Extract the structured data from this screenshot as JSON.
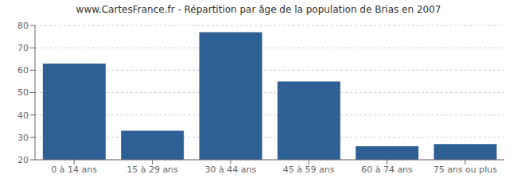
{
  "chart_data": {
    "type": "bar",
    "title": "www.CartesFrance.fr - Répartition par âge de la population de Brias en 2007",
    "categories": [
      "0 à 14 ans",
      "15 à 29 ans",
      "30 à 44 ans",
      "45 à 59 ans",
      "60 à 74 ans",
      "75 ans ou plus"
    ],
    "values": [
      63,
      33,
      77,
      55,
      26,
      27
    ],
    "color": "#2e6096",
    "ylim": [
      20,
      80
    ],
    "yticks": [
      20,
      30,
      40,
      50,
      60,
      70,
      80
    ],
    "grid": true
  }
}
